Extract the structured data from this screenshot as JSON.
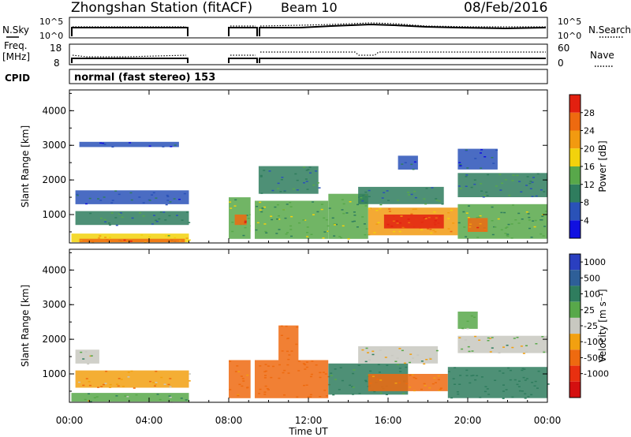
{
  "header": {
    "station": "Zhongshan Station (fitACF)",
    "beam": "Beam 10",
    "date": "08/Feb/2016"
  },
  "top_panel": {
    "left_label": "N.Sky",
    "right_label": "N.Search",
    "tick_top": "10^5",
    "tick_bottom": "10^0"
  },
  "freq_panel": {
    "left_label_1": "Freq.",
    "left_label_2": "[MHz]",
    "right_label": "Nave",
    "left_ticks": [
      "18",
      "8"
    ],
    "right_ticks": [
      "60",
      "0"
    ]
  },
  "cpid": {
    "label": "CPID",
    "text": "normal (fast stereo) 153"
  },
  "colors": {
    "power_scale": [
      "#1010e0",
      "#2a52b8",
      "#2f7d5e",
      "#58a84a",
      "#f2d20c",
      "#f29a10",
      "#ee6a10",
      "#e22010"
    ],
    "velocity_scale": [
      "#2a3fc0",
      "#2e5f98",
      "#2f7d5e",
      "#58a84a",
      "#c8c8c0",
      "#f2a010",
      "#ee6a10",
      "#e83010",
      "#d41010"
    ]
  },
  "chart_data": [
    {
      "type": "heatmap",
      "panel": "power",
      "ylabel": "Slant Range [km]",
      "yticks": [
        "1000",
        "2000",
        "3000",
        "4000"
      ],
      "ylim": [
        180,
        4600
      ],
      "xlim": [
        0,
        24
      ],
      "colorbar": {
        "label": "Power [dB]",
        "ticks": [
          "4",
          "8",
          "12",
          "16",
          "20",
          "24",
          "28"
        ],
        "range": [
          0,
          32
        ]
      },
      "data_gaps_hours": [
        [
          6.1,
          7.9
        ],
        [
          9.1,
          9.3
        ]
      ],
      "cells": [
        {
          "t0": 0.1,
          "t1": 6.0,
          "r0": 200,
          "r1": 450,
          "value": 18
        },
        {
          "t0": 0.5,
          "t1": 5.8,
          "r0": 200,
          "r1": 300,
          "value": 26
        },
        {
          "t0": 0.3,
          "t1": 6.0,
          "r0": 1300,
          "r1": 1700,
          "value": 7
        },
        {
          "t0": 0.3,
          "t1": 6.0,
          "r0": 700,
          "r1": 1100,
          "value": 9
        },
        {
          "t0": 0.5,
          "t1": 5.5,
          "r0": 2950,
          "r1": 3100,
          "value": 5
        },
        {
          "t0": 8.0,
          "t1": 9.1,
          "r0": 300,
          "r1": 1500,
          "value": 15
        },
        {
          "t0": 8.3,
          "t1": 8.9,
          "r0": 700,
          "r1": 1000,
          "value": 26
        },
        {
          "t0": 9.3,
          "t1": 13.0,
          "r0": 300,
          "r1": 1400,
          "value": 14
        },
        {
          "t0": 9.5,
          "t1": 12.5,
          "r0": 1600,
          "r1": 2400,
          "value": 10
        },
        {
          "t0": 13.0,
          "t1": 15.0,
          "r0": 300,
          "r1": 1600,
          "value": 12
        },
        {
          "t0": 15.0,
          "t1": 19.5,
          "r0": 400,
          "r1": 1200,
          "value": 22
        },
        {
          "t0": 15.8,
          "t1": 18.8,
          "r0": 600,
          "r1": 1000,
          "value": 28
        },
        {
          "t0": 14.5,
          "t1": 18.8,
          "r0": 1300,
          "r1": 1800,
          "value": 11
        },
        {
          "t0": 16.5,
          "t1": 17.5,
          "r0": 2300,
          "r1": 2700,
          "value": 7
        },
        {
          "t0": 19.5,
          "t1": 24.0,
          "r0": 300,
          "r1": 1300,
          "value": 13
        },
        {
          "t0": 20.0,
          "t1": 21.0,
          "r0": 500,
          "r1": 900,
          "value": 24
        },
        {
          "t0": 19.5,
          "t1": 24.0,
          "r0": 1500,
          "r1": 2200,
          "value": 10
        },
        {
          "t0": 19.5,
          "t1": 21.5,
          "r0": 2300,
          "r1": 2900,
          "value": 6
        }
      ]
    },
    {
      "type": "heatmap",
      "panel": "velocity",
      "ylabel": "Slant Range [km]",
      "yticks": [
        "1000",
        "2000",
        "3000",
        "4000"
      ],
      "ylim": [
        180,
        4600
      ],
      "xlim": [
        0,
        24
      ],
      "xlabel": "Time UT",
      "xticks": [
        "00:00",
        "04:00",
        "08:00",
        "12:00",
        "16:00",
        "20:00",
        "00:00"
      ],
      "colorbar": {
        "label": "Velocity [m s⁻¹]",
        "ticks": [
          "1000",
          "500",
          "100",
          "25",
          "-25",
          "-100",
          "-500",
          "-1000"
        ]
      },
      "data_gaps_hours": [
        [
          6.1,
          7.9
        ],
        [
          9.1,
          9.3
        ]
      ],
      "cells": [
        {
          "t0": 0.1,
          "t1": 6.0,
          "r0": 200,
          "r1": 450,
          "value": 60
        },
        {
          "t0": 0.3,
          "t1": 1.5,
          "r0": 1300,
          "r1": 1700,
          "value": 10
        },
        {
          "t0": 0.3,
          "t1": 6.0,
          "r0": 600,
          "r1": 1100,
          "value": -80
        },
        {
          "t0": 8.0,
          "t1": 9.1,
          "r0": 300,
          "r1": 1400,
          "value": -150
        },
        {
          "t0": 9.3,
          "t1": 13.0,
          "r0": 300,
          "r1": 1400,
          "value": -400
        },
        {
          "t0": 10.5,
          "t1": 11.5,
          "r0": 1400,
          "r1": 2400,
          "value": -300
        },
        {
          "t0": 13.0,
          "t1": 17.0,
          "r0": 400,
          "r1": 1300,
          "value": 150
        },
        {
          "t0": 15.0,
          "t1": 19.0,
          "r0": 500,
          "r1": 1000,
          "value": -120
        },
        {
          "t0": 14.5,
          "t1": 18.5,
          "r0": 1300,
          "r1": 1800,
          "value": 20
        },
        {
          "t0": 19.0,
          "t1": 24.0,
          "r0": 300,
          "r1": 1200,
          "value": 400
        },
        {
          "t0": 19.5,
          "t1": 24.0,
          "r0": 1600,
          "r1": 2100,
          "value": 5
        },
        {
          "t0": 19.5,
          "t1": 20.5,
          "r0": 2300,
          "r1": 2800,
          "value": 60
        }
      ]
    }
  ]
}
